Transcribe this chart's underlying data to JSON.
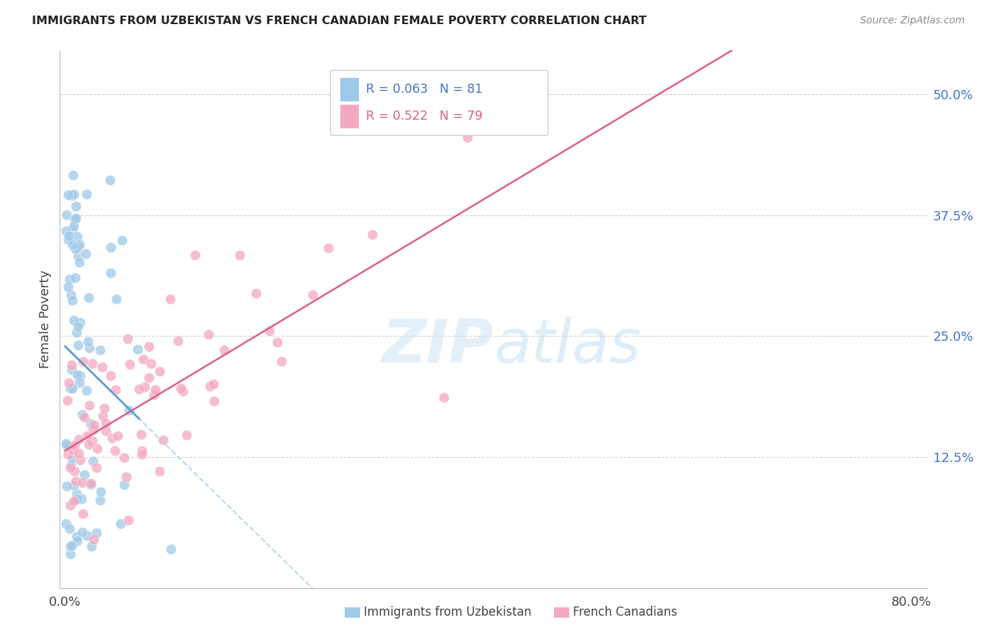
{
  "title": "IMMIGRANTS FROM UZBEKISTAN VS FRENCH CANADIAN FEMALE POVERTY CORRELATION CHART",
  "source": "Source: ZipAtlas.com",
  "ylabel": "Female Poverty",
  "ytick_labels": [
    "50.0%",
    "37.5%",
    "25.0%",
    "12.5%"
  ],
  "ytick_values": [
    0.5,
    0.375,
    0.25,
    0.125
  ],
  "xlim": [
    0.0,
    0.8
  ],
  "ylim": [
    0.0,
    0.54
  ],
  "blue_line_color": "#5b9bd5",
  "blue_line_dashed_color": "#a8d0ee",
  "pink_line_color": "#e05c8a",
  "blue_dot_color": "#9ec9e8",
  "pink_dot_color": "#f4a7c0",
  "watermark_color": "#cce5f5",
  "background_color": "#ffffff",
  "grid_color": "#cccccc",
  "title_color": "#222222",
  "axis_label_color": "#444444",
  "tick_label_color": "#4472c4",
  "source_color": "#888888",
  "legend_text_blue": "R = 0.063   N = 81",
  "legend_text_pink": "R = 0.522   N = 79",
  "legend_color_blue": "#4472c4",
  "legend_color_pink": "#e05c8a",
  "bottom_legend_label1": "Immigrants from Uzbekistan",
  "bottom_legend_label2": "French Canadians"
}
